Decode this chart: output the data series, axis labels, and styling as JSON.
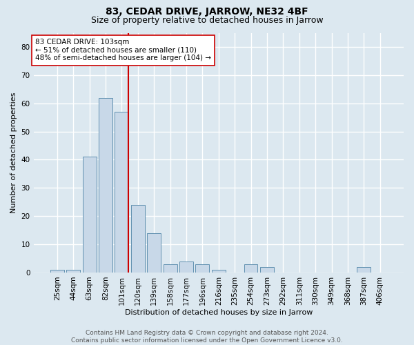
{
  "title": "83, CEDAR DRIVE, JARROW, NE32 4BF",
  "subtitle": "Size of property relative to detached houses in Jarrow",
  "xlabel": "Distribution of detached houses by size in Jarrow",
  "ylabel": "Number of detached properties",
  "categories": [
    "25sqm",
    "44sqm",
    "63sqm",
    "82sqm",
    "101sqm",
    "120sqm",
    "139sqm",
    "158sqm",
    "177sqm",
    "196sqm",
    "216sqm",
    "235sqm",
    "254sqm",
    "273sqm",
    "292sqm",
    "311sqm",
    "330sqm",
    "349sqm",
    "368sqm",
    "387sqm",
    "406sqm"
  ],
  "values": [
    1,
    1,
    41,
    62,
    57,
    24,
    14,
    3,
    4,
    3,
    1,
    0,
    3,
    2,
    0,
    0,
    0,
    0,
    0,
    2,
    0
  ],
  "bar_color": "#c8d8e8",
  "bar_edge_color": "#6090b0",
  "marker_bin_index": 4,
  "marker_line_color": "#cc0000",
  "annotation_line1": "83 CEDAR DRIVE: 103sqm",
  "annotation_line2": "← 51% of detached houses are smaller (110)",
  "annotation_line3": "48% of semi-detached houses are larger (104) →",
  "annotation_box_color": "#ffffff",
  "annotation_box_edge_color": "#cc0000",
  "ylim": [
    0,
    85
  ],
  "yticks": [
    0,
    10,
    20,
    30,
    40,
    50,
    60,
    70,
    80
  ],
  "footer_text": "Contains HM Land Registry data © Crown copyright and database right 2024.\nContains public sector information licensed under the Open Government Licence v3.0.",
  "background_color": "#dce8f0",
  "plot_background_color": "#dce8f0",
  "grid_color": "#ffffff",
  "title_fontsize": 10,
  "subtitle_fontsize": 9,
  "axis_label_fontsize": 8,
  "tick_fontsize": 7.5,
  "annotation_fontsize": 7.5,
  "footer_fontsize": 6.5
}
